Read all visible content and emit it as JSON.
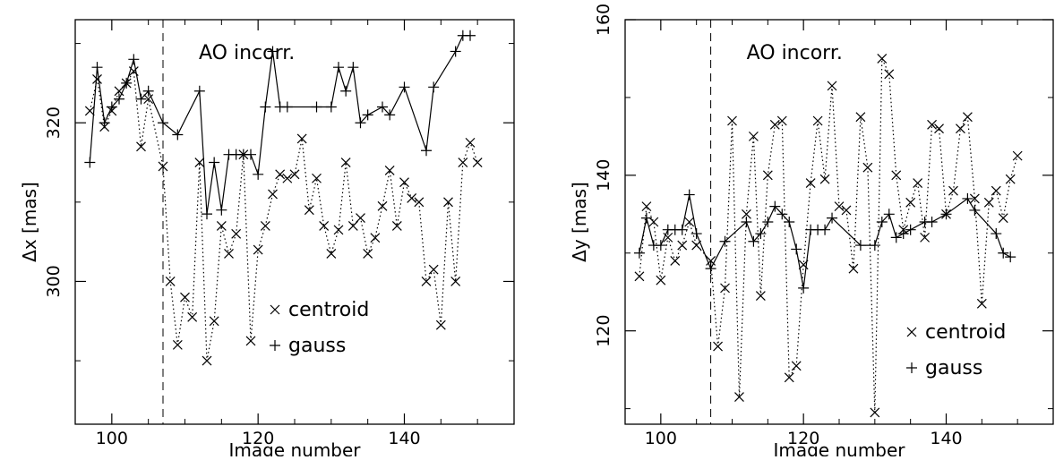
{
  "chart_data": [
    {
      "type": "line",
      "panel": "left",
      "xlabel": "Image number",
      "ylabel": "Δx [mas]",
      "xlim": [
        95,
        155
      ],
      "ylim": [
        282,
        333
      ],
      "xticks": [
        100,
        120,
        140
      ],
      "yticks": [
        300,
        320
      ],
      "annotation": "AO incorr.",
      "vline_x": 107,
      "legend_position": "bottom-center",
      "series": [
        {
          "name": "centroid",
          "marker": "x",
          "linestyle": "dotted",
          "x": [
            97,
            98,
            99,
            100,
            101,
            102,
            103,
            104,
            105,
            107,
            108,
            109,
            110,
            111,
            112,
            113,
            114,
            115,
            116,
            117,
            118,
            119,
            120,
            121,
            122,
            123,
            124,
            125,
            126,
            127,
            128,
            129,
            130,
            131,
            132,
            133,
            134,
            135,
            136,
            137,
            138,
            139,
            140,
            141,
            142,
            143,
            144,
            145,
            146,
            147,
            148,
            149,
            150
          ],
          "y": [
            321.5,
            325.5,
            319.5,
            321.5,
            324,
            325,
            326.5,
            317,
            323,
            314.5,
            300,
            292,
            298,
            295.5,
            315,
            290,
            295,
            307,
            303.5,
            306,
            316,
            292.5,
            304,
            307,
            311,
            313.5,
            313,
            313.5,
            318,
            309,
            313,
            307,
            303.5,
            306.5,
            315,
            307,
            308,
            303.5,
            305.5,
            309.5,
            314,
            307,
            312.5,
            310.5,
            310,
            300,
            301.5,
            294.5,
            310,
            300,
            315,
            317.5,
            315
          ]
        },
        {
          "name": "gauss",
          "marker": "+",
          "linestyle": "solid",
          "x": [
            97,
            98,
            99,
            100,
            101,
            102,
            103,
            104,
            105,
            107,
            109,
            112,
            113,
            114,
            115,
            116,
            117,
            118,
            119,
            120,
            121,
            122,
            123,
            124,
            128,
            130,
            131,
            132,
            133,
            134,
            135,
            137,
            138,
            140,
            143,
            144,
            147,
            148,
            149
          ],
          "y": [
            315,
            327,
            320,
            322,
            323,
            325,
            328,
            323,
            324,
            320,
            318.5,
            324,
            308.5,
            315,
            309,
            316,
            316,
            316,
            316,
            313.5,
            322,
            329,
            322,
            322,
            322,
            322,
            327,
            324,
            327,
            320,
            321,
            322,
            321,
            324.5,
            316.5,
            324.5,
            329,
            331,
            331
          ]
        }
      ]
    },
    {
      "type": "line",
      "panel": "right",
      "xlabel": "Image number",
      "ylabel": "Δy [mas]",
      "xlim": [
        95,
        155
      ],
      "ylim": [
        108,
        160
      ],
      "xticks": [
        100,
        120,
        140
      ],
      "yticks": [
        120,
        140,
        160
      ],
      "annotation": "AO incorr.",
      "vline_x": 107,
      "legend_position": "bottom-right",
      "series": [
        {
          "name": "centroid",
          "marker": "x",
          "linestyle": "dotted",
          "x": [
            97,
            98,
            99,
            100,
            101,
            102,
            103,
            104,
            105,
            107,
            108,
            109,
            110,
            111,
            112,
            113,
            114,
            115,
            116,
            117,
            118,
            119,
            120,
            121,
            122,
            123,
            124,
            125,
            126,
            127,
            128,
            129,
            130,
            131,
            132,
            133,
            134,
            135,
            136,
            137,
            138,
            139,
            140,
            141,
            142,
            143,
            144,
            145,
            146,
            147,
            148,
            149,
            150
          ],
          "y": [
            127,
            136,
            134,
            126.5,
            132,
            129,
            131,
            134,
            131,
            129,
            118,
            125.5,
            147,
            111.5,
            135,
            145,
            124.5,
            140,
            146.5,
            147,
            114,
            115.5,
            128.5,
            139,
            147,
            139.5,
            151.5,
            136,
            135.5,
            128,
            147.5,
            141,
            109.5,
            155,
            153,
            140,
            133,
            136.5,
            139,
            132,
            146.5,
            146,
            135,
            138,
            146,
            147.5,
            137,
            123.5,
            136.5,
            138,
            134.5,
            139.5,
            142.5
          ]
        },
        {
          "name": "gauss",
          "marker": "+",
          "linestyle": "solid",
          "x": [
            97,
            98,
            99,
            100,
            101,
            102,
            103,
            104,
            105,
            107,
            109,
            112,
            113,
            114,
            115,
            116,
            117,
            118,
            119,
            120,
            121,
            122,
            123,
            124,
            128,
            130,
            131,
            132,
            133,
            134,
            135,
            137,
            138,
            140,
            143,
            144,
            147,
            148,
            149
          ],
          "y": [
            130,
            134.5,
            131,
            131,
            133,
            133,
            133,
            137.5,
            132.5,
            128,
            131.5,
            134,
            131.5,
            132.5,
            134,
            136,
            135,
            134,
            130.5,
            125.5,
            133,
            133,
            133,
            134.5,
            131,
            131,
            134,
            135,
            132,
            132.5,
            133,
            134,
            134,
            135,
            137,
            135.5,
            132.5,
            130,
            129.5
          ]
        }
      ]
    }
  ]
}
